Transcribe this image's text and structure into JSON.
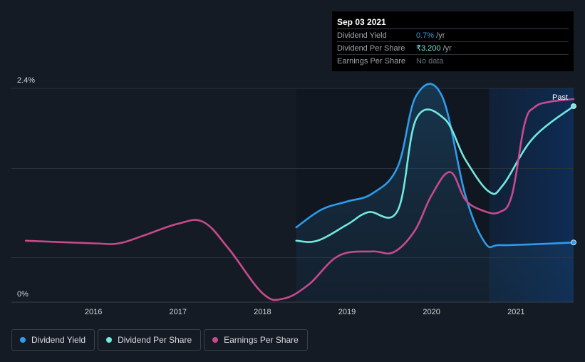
{
  "tooltip": {
    "date": "Sep 03 2021",
    "rows": [
      {
        "label": "Dividend Yield",
        "value": "0.7%",
        "unit": " /yr"
      },
      {
        "label": "Dividend Per Share",
        "value": "₹3.200",
        "unit": " /yr"
      },
      {
        "label": "Earnings Per Share",
        "value": "No data",
        "unit": ""
      }
    ]
  },
  "legend": [
    {
      "label": "Dividend Yield",
      "color": "#2e9cec"
    },
    {
      "label": "Dividend Per Share",
      "color": "#72e8df"
    },
    {
      "label": "Earnings Per Share",
      "color": "#c74a8d"
    }
  ],
  "chart_data": {
    "type": "line",
    "y_top_label": "2.4%",
    "y_bottom_label": "0%",
    "past_label": "Past",
    "x_ticks": [
      "2016",
      "2017",
      "2018",
      "2019",
      "2020",
      "2021"
    ],
    "xlim": [
      2015.2,
      2021.68
    ],
    "ylim": [
      0,
      2.4
    ],
    "forecast_start": 2020.68,
    "series": [
      {
        "name": "Dividend Yield",
        "color": "#2e9cec",
        "fill": true,
        "x": [
          2018.4,
          2018.7,
          2019.0,
          2019.3,
          2019.6,
          2019.82,
          2020.12,
          2020.4,
          2020.63,
          2020.8,
          2021.2,
          2021.68
        ],
        "y": [
          0.84,
          1.04,
          1.13,
          1.22,
          1.52,
          2.32,
          2.32,
          1.2,
          0.67,
          0.64,
          0.65,
          0.67
        ]
      },
      {
        "name": "Dividend Per Share",
        "color": "#72e8df",
        "fill": false,
        "x": [
          2018.4,
          2018.65,
          2019.0,
          2019.25,
          2019.6,
          2019.82,
          2020.15,
          2020.4,
          2020.68,
          2020.85,
          2021.2,
          2021.68
        ],
        "y": [
          0.69,
          0.69,
          0.87,
          1.01,
          1.03,
          2.06,
          2.06,
          1.6,
          1.24,
          1.32,
          1.84,
          2.2
        ]
      },
      {
        "name": "Earnings Per Share",
        "color": "#c74a8d",
        "fill": false,
        "x": [
          2015.2,
          2016.0,
          2016.3,
          2016.6,
          2017.0,
          2017.3,
          2017.6,
          2018.0,
          2018.25,
          2018.55,
          2018.9,
          2019.3,
          2019.55,
          2019.8,
          2020.0,
          2020.22,
          2020.4,
          2020.6,
          2020.8,
          2020.95,
          2021.1,
          2021.22,
          2021.4,
          2021.68
        ],
        "y": [
          0.69,
          0.66,
          0.66,
          0.75,
          0.88,
          0.9,
          0.6,
          0.1,
          0.04,
          0.2,
          0.52,
          0.57,
          0.56,
          0.8,
          1.2,
          1.46,
          1.15,
          1.03,
          1.01,
          1.2,
          2.0,
          2.19,
          2.25,
          2.28
        ]
      }
    ]
  }
}
